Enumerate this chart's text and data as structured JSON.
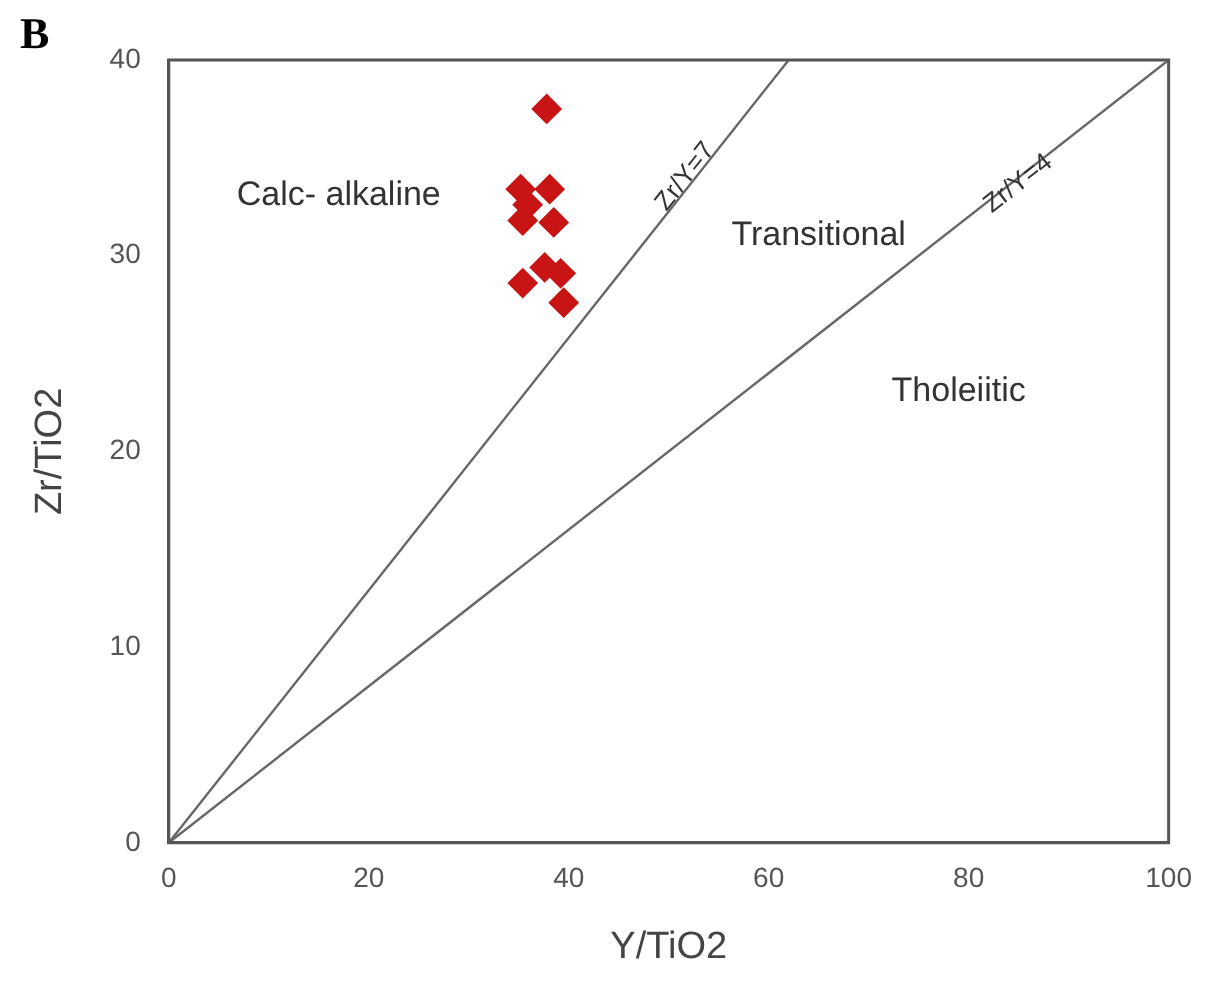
{
  "chart_data": {
    "type": "scatter",
    "title": "B",
    "xlabel": "Y/TiO2",
    "ylabel": "Zr/TiO2",
    "xlim": [
      0,
      100
    ],
    "ylim": [
      0,
      40
    ],
    "xticks": [
      0,
      20,
      40,
      60,
      80,
      100
    ],
    "yticks": [
      0,
      10,
      20,
      30,
      40
    ],
    "grid": false,
    "legend": false,
    "series": [
      {
        "type": "scatter",
        "marker": "diamond",
        "color": "#c81414",
        "x": [
          37.8,
          35.2,
          38.1,
          35.9,
          35.4,
          38.5,
          37.6,
          35.4,
          39.2,
          39.5
        ],
        "values": [
          37.5,
          33.4,
          33.4,
          32.6,
          31.8,
          31.7,
          29.4,
          28.6,
          29.1,
          27.6
        ]
      },
      {
        "type": "line",
        "color": "#666666",
        "x": [
          0,
          62
        ],
        "values": [
          0,
          40
        ]
      },
      {
        "type": "line",
        "color": "#666666",
        "x": [
          0,
          100
        ],
        "values": [
          0,
          40
        ]
      }
    ],
    "annotations": [
      "Calc- alkaline",
      "Transitional",
      "Zr/Y=7",
      "Zr/Y=4",
      "Tholeiitic"
    ]
  }
}
